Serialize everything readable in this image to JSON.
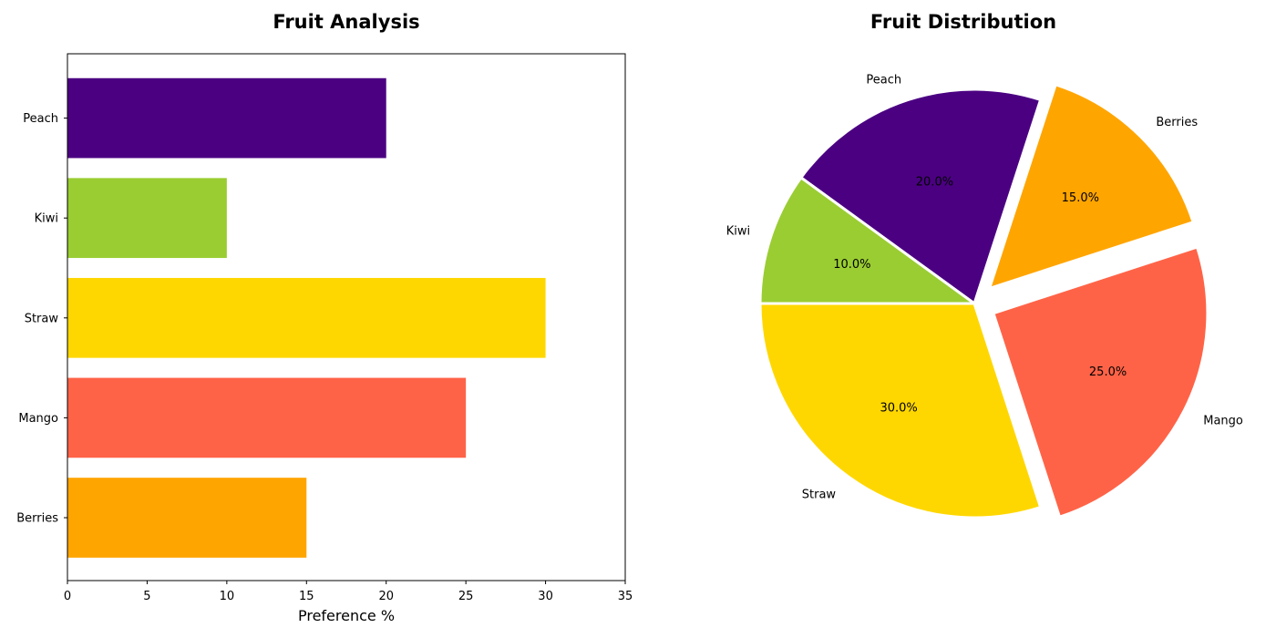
{
  "chart_data": [
    {
      "type": "bar",
      "orientation": "horizontal",
      "title": "Fruit Analysis",
      "xlabel": "Preference %",
      "ylabel": "",
      "categories": [
        "Berries",
        "Mango",
        "Straw",
        "Kiwi",
        "Peach"
      ],
      "values": [
        15,
        25,
        30,
        10,
        20
      ],
      "colors": [
        "#FFA500",
        "#FF6347",
        "#FFD700",
        "#9ACD32",
        "#4B0082"
      ],
      "xlim": [
        0,
        35
      ],
      "xticks": [
        0,
        5,
        10,
        15,
        20,
        25,
        30,
        35
      ],
      "grid": false
    },
    {
      "type": "pie",
      "title": "Fruit Distribution",
      "labels": [
        "Peach",
        "Kiwi",
        "Straw",
        "Mango",
        "Berries"
      ],
      "values": [
        20,
        10,
        30,
        25,
        15
      ],
      "percent_labels": [
        "20.0%",
        "10.0%",
        "30.0%",
        "25.0%",
        "15.0%"
      ],
      "colors": [
        "#4B0082",
        "#9ACD32",
        "#FFD700",
        "#FF6347",
        "#FFA500"
      ],
      "exploded": [
        false,
        false,
        false,
        true,
        true
      ]
    }
  ]
}
